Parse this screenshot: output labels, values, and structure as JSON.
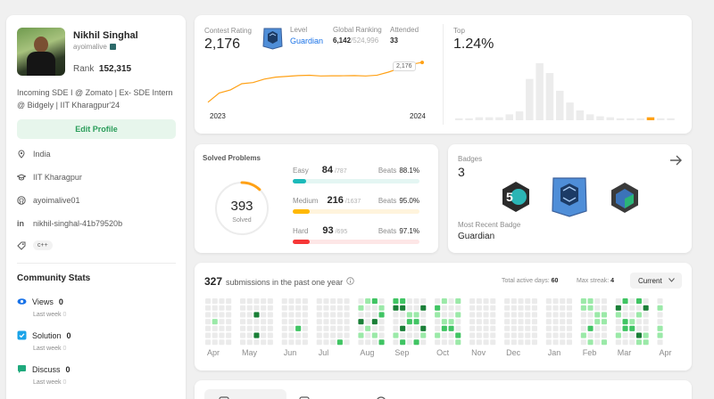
{
  "profile": {
    "name": "Nikhil Singhal",
    "username": "ayoimalive",
    "rank_label": "Rank",
    "rank_value": "152,315",
    "bio": "Incoming SDE I @ Zomato | Ex- SDE Intern @ Bidgely | IIT Kharagpur'24",
    "edit_label": "Edit Profile",
    "location": "India",
    "school": "IIT Kharagpur",
    "github": "ayoimalive01",
    "linkedin": "nikhil-singhal-41b79520b",
    "skill_tag": "c++"
  },
  "community": {
    "title": "Community Stats",
    "last_week_label": "Last week",
    "items": [
      {
        "label": "Views",
        "value": "0",
        "last_week": "0",
        "color": "#1a73e8"
      },
      {
        "label": "Solution",
        "value": "0",
        "last_week": "0",
        "color": "#1aa3e8"
      },
      {
        "label": "Discuss",
        "value": "0",
        "last_week": "0",
        "color": "#1fa97c"
      }
    ]
  },
  "contest": {
    "rating_label": "Contest Rating",
    "rating": "2,176",
    "level_label": "Level",
    "level": "Guardian",
    "global_label": "Global Ranking",
    "global_rank": "6,142",
    "global_total": "/524,996",
    "attended_label": "Attended",
    "attended": "33",
    "tooltip": "2,176",
    "x_start": "2023",
    "x_end": "2024",
    "top_label": "Top",
    "top_value": "1.24%"
  },
  "chart_data": [
    {
      "type": "line",
      "title": "Contest Rating",
      "x_ticks": [
        "2023",
        "2024"
      ],
      "series": [
        {
          "values": [
            1660,
            1780,
            1820,
            1900,
            1915,
            1960,
            1985,
            1995,
            2005,
            2010,
            2000,
            2002,
            2003,
            2005,
            2000,
            2010,
            2050,
            2100,
            2150,
            2176
          ]
        }
      ],
      "color": "#ffa116"
    },
    {
      "type": "bar",
      "title": "Top",
      "values": [
        2,
        2,
        3,
        3,
        3,
        6,
        9,
        42,
        58,
        48,
        30,
        18,
        10,
        6,
        4,
        3,
        2,
        2,
        2,
        3,
        2,
        2
      ],
      "highlight_index": 19,
      "colors": {
        "bar": "#ececec",
        "highlight": "#ffa116"
      }
    },
    {
      "type": "heatmap",
      "title": "submissions in the past one year",
      "months": [
        "Apr",
        "May",
        "Jun",
        "Jul",
        "Aug",
        "Sep",
        "Oct",
        "Nov",
        "Dec",
        "Jan",
        "Feb",
        "Mar",
        "Apr"
      ]
    }
  ],
  "solved": {
    "title": "Solved Problems",
    "total": "393",
    "total_label": "Solved",
    "ring_fraction": 0.12,
    "beats_label": "Beats",
    "rows": [
      {
        "name": "Easy",
        "count": "84",
        "total": "/787",
        "beats": "88.1%",
        "fraction": 0.107,
        "color": "#1cbaba",
        "bg": "#e4f6f3"
      },
      {
        "name": "Medium",
        "count": "216",
        "total": "/1637",
        "beats": "95.0%",
        "fraction": 0.132,
        "color": "#ffb800",
        "bg": "#fff4dc"
      },
      {
        "name": "Hard",
        "count": "93",
        "total": "/695",
        "beats": "97.1%",
        "fraction": 0.134,
        "color": "#f63737",
        "bg": "#fde6e6"
      }
    ]
  },
  "badges": {
    "title": "Badges",
    "count": "3",
    "recent_label": "Most Recent Badge",
    "recent": "Guardian"
  },
  "submissions": {
    "count": "327",
    "label": "submissions in the past one year",
    "active_label": "Total active days:",
    "active_value": "60",
    "streak_label": "Max streak:",
    "streak_value": "4",
    "current_label": "Current"
  }
}
